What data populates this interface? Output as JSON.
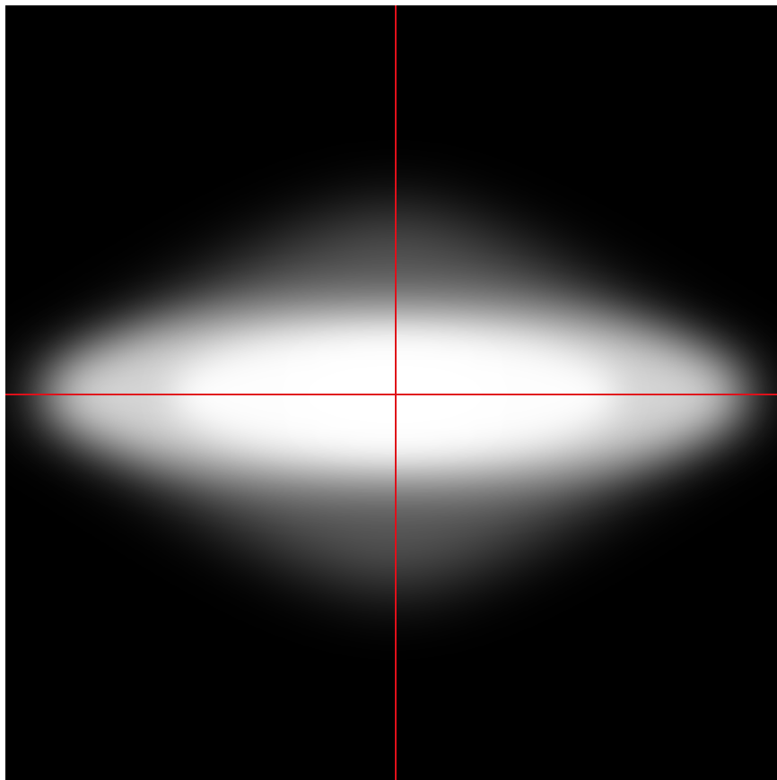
{
  "colors": {
    "background": "#000000",
    "frame": "#ffffff",
    "glow_core": "#ffffff",
    "crosshair": "#e0101a"
  },
  "icons": {
    "crosshair": "crosshair-icon"
  }
}
